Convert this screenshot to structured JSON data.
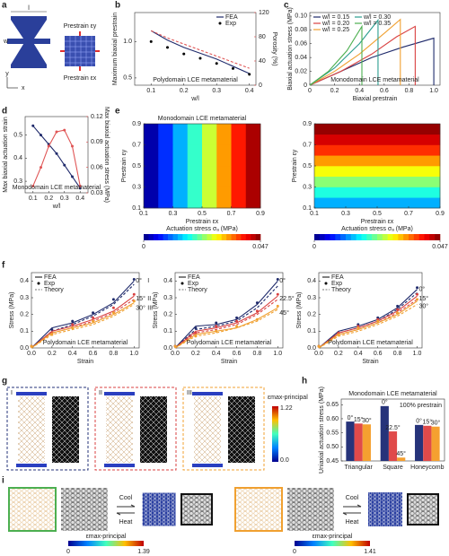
{
  "panel_labels": [
    "a",
    "b",
    "c",
    "d",
    "e",
    "f",
    "g",
    "h",
    "i"
  ],
  "diagrams": {
    "a": {
      "length": "l",
      "width": "w",
      "y_axis": "y",
      "x_axis": "x",
      "prestrain_y": "Prestrain εy",
      "prestrain_x": "Prestrain εx"
    },
    "g": {
      "cases": [
        "I",
        "II",
        "III"
      ],
      "colorbar": {
        "label": "εmax-principal",
        "top": "1.22",
        "bottom": "0.0"
      }
    },
    "i": {
      "left": {
        "cool": "Cool",
        "heat": "Heat",
        "colorbar": {
          "label": "εmax-principal",
          "min": "0",
          "max": "1.39"
        }
      },
      "right": {
        "cool": "Cool",
        "heat": "Heat",
        "colorbar": {
          "label": "εmax-principal",
          "min": "0",
          "max": "1.41"
        }
      }
    }
  },
  "chart_data": [
    {
      "type": "line",
      "x": [
        0.1,
        0.15,
        0.2,
        0.25,
        0.3,
        0.35,
        0.4
      ],
      "xlim": [
        0.05,
        0.42
      ],
      "xticks": [
        0.1,
        0.2,
        0.3,
        0.4
      ],
      "ylim": [
        0.4,
        1.4
      ],
      "yticks": [
        0.5,
        {
          "value": 1,
          "label": "1.0"
        }
      ],
      "y2lim": [
        0,
        120
      ],
      "y2ticks": [
        0,
        40,
        80,
        120
      ],
      "xlabel": "w/l",
      "ylabel": "Maximum biaxial prestrain",
      "y2label": "Porosity (%)",
      "annotation": "Polydomain LCE metamaterial",
      "legend": "upper right",
      "series": [
        {
          "name": "FEA",
          "color": "#1f2a6b",
          "style": "line",
          "values": [
            1.15,
            1.02,
            0.92,
            0.84,
            0.76,
            0.66,
            0.56
          ]
        },
        {
          "name": "Exp",
          "color": "#000000",
          "style": "points",
          "values": [
            1.0,
            0.92,
            0.83,
            0.77,
            0.7,
            0.63,
            0.55
          ]
        },
        {
          "color": "#e05555",
          "style": "dashed",
          "axis": "y2",
          "values": [
            90,
            78,
            68,
            58,
            48,
            38,
            28
          ]
        }
      ]
    },
    {
      "type": "line",
      "xlim": [
        0,
        1.05
      ],
      "xticks": [
        0,
        0.2,
        0.4,
        0.6,
        0.8,
        {
          "value": 1,
          "label": "1.0"
        }
      ],
      "ylim": [
        0,
        0.105
      ],
      "yticks": [
        0,
        0.02,
        0.04,
        0.06,
        0.08,
        {
          "value": 0.1,
          "label": "0.10"
        }
      ],
      "xlabel": "Biaxial prestrain",
      "ylabel": "Biaxial actuation stress (MPa)",
      "annotation": "Monodomain LCE metamaterial",
      "legend": "upper left",
      "series": [
        {
          "name": "w/l = 0.15",
          "color": "#1f2a6b",
          "style": "line",
          "x": [
            0,
            0.25,
            0.5,
            0.75,
            1.0,
            1.0
          ],
          "values": [
            0,
            0.02,
            0.04,
            0.055,
            0.068,
            0
          ]
        },
        {
          "name": "w/l = 0.20",
          "color": "#d94141",
          "style": "line",
          "x": [
            0,
            0.25,
            0.5,
            0.7,
            0.85,
            0.85
          ],
          "values": [
            0,
            0.02,
            0.045,
            0.07,
            0.085,
            0
          ]
        },
        {
          "name": "w/l = 0.25",
          "color": "#f0a030",
          "style": "line",
          "x": [
            0,
            0.2,
            0.4,
            0.6,
            0.73,
            0.73
          ],
          "values": [
            0,
            0.02,
            0.045,
            0.075,
            0.095,
            0
          ]
        },
        {
          "name": "w/l = 0.30",
          "color": "#2a9d8f",
          "style": "line",
          "x": [
            0,
            0.2,
            0.4,
            0.55,
            0.55
          ],
          "values": [
            0,
            0.025,
            0.06,
            0.094,
            0
          ]
        },
        {
          "name": "w/l = 0.35",
          "color": "#4caf50",
          "style": "line",
          "x": [
            0,
            0.15,
            0.3,
            0.42,
            0.42
          ],
          "values": [
            0,
            0.02,
            0.05,
            0.085,
            0
          ]
        }
      ]
    },
    {
      "type": "line",
      "x": [
        0.1,
        0.15,
        0.2,
        0.25,
        0.3,
        0.35,
        0.4
      ],
      "xlim": [
        0.05,
        0.45
      ],
      "xticks": [
        0.1,
        0.2,
        0.3,
        0.4
      ],
      "ylim": [
        0.25,
        0.58
      ],
      "yticks": [
        0.3,
        0.4,
        0.5
      ],
      "y2lim": [
        0.03,
        0.12
      ],
      "y2ticks": [
        0.03,
        0.06,
        0.09,
        0.12
      ],
      "xlabel": "w/l",
      "ylabel": "Max biaxial actuation strain",
      "y2label": "Max biaxial actuation stress (MPa)",
      "annotation": "Monodomain LCE metamaterial",
      "series": [
        {
          "color": "#1f2a6b",
          "style": "line-points",
          "values": [
            0.54,
            0.5,
            0.46,
            0.42,
            0.37,
            0.32,
            0.27
          ]
        },
        {
          "color": "#e05555",
          "style": "line-points",
          "axis": "y2",
          "values": [
            0.038,
            0.06,
            0.085,
            0.102,
            0.104,
            0.085,
            0.038
          ]
        }
      ]
    },
    {
      "type": "heatmap",
      "title": "Monodomain LCE metamaterial",
      "xlim": [
        0.1,
        0.9
      ],
      "ylim": [
        0.1,
        0.9
      ],
      "xticks": [
        0.1,
        0.3,
        0.5,
        0.7,
        0.9
      ],
      "yticks": [
        0.1,
        0.3,
        0.5,
        0.7,
        0.9
      ],
      "xlabel": "Prestrain εx",
      "ylabel": "Prestrain εy",
      "zlim": [
        0,
        0.047
      ],
      "z": [
        [
          0.002,
          0.008,
          0.014,
          0.02,
          0.027,
          0.034,
          0.04,
          0.045
        ],
        [
          0.002,
          0.008,
          0.014,
          0.02,
          0.027,
          0.034,
          0.04,
          0.045
        ],
        [
          0.002,
          0.008,
          0.014,
          0.02,
          0.027,
          0.034,
          0.04,
          0.045
        ],
        [
          0.002,
          0.008,
          0.014,
          0.02,
          0.027,
          0.034,
          0.04,
          0.045
        ]
      ],
      "colorbar": {
        "label": "Actuation stress σₐ (MPa)",
        "ticks": [
          0,
          0.047
        ]
      }
    },
    {
      "type": "heatmap",
      "xlim": [
        0.1,
        0.9
      ],
      "ylim": [
        0.1,
        0.9
      ],
      "xticks": [
        0.1,
        0.3,
        0.5,
        0.7,
        0.9
      ],
      "yticks": [
        0.1,
        0.3,
        0.5,
        0.7,
        0.9
      ],
      "xlabel": "Prestrain εx",
      "ylabel": "Prestrain εy",
      "zlim": [
        0,
        0.047
      ],
      "z": [
        [
          0.014,
          0.014,
          0.014,
          0.014
        ],
        [
          0.019,
          0.019,
          0.019,
          0.019
        ],
        [
          0.024,
          0.024,
          0.024,
          0.024
        ],
        [
          0.029,
          0.029,
          0.029,
          0.029
        ],
        [
          0.034,
          0.034,
          0.034,
          0.034
        ],
        [
          0.039,
          0.039,
          0.039,
          0.039
        ],
        [
          0.043,
          0.043,
          0.043,
          0.043
        ],
        [
          0.046,
          0.046,
          0.046,
          0.046
        ]
      ],
      "colorbar": {
        "label": "Actuation stress σₐ (MPa)",
        "ticks": [
          0,
          0.047
        ]
      }
    },
    {
      "type": "line",
      "x": [
        0,
        0.2,
        0.4,
        0.6,
        0.8,
        1.0
      ],
      "xlim": [
        0,
        1.05
      ],
      "xticks": [
        {
          "value": 0,
          "label": "0.0"
        },
        0.2,
        0.4,
        0.6,
        0.8,
        {
          "value": 1,
          "label": "1.0"
        }
      ],
      "ylim": [
        0,
        0.45
      ],
      "yticks": [
        {
          "value": 0,
          "label": "0.0"
        },
        0.1,
        0.2,
        0.3,
        0.4
      ],
      "xlabel": "Strain",
      "ylabel": "Stress (MPa)",
      "annotation": "Polydomain LCE metamaterial",
      "legend": "upper left",
      "legend_items": [
        {
          "name": "FEA",
          "style": "line"
        },
        {
          "name": "Exp",
          "style": "points"
        },
        {
          "name": "Theory",
          "style": "dashed"
        }
      ],
      "curves": [
        {
          "name": "0°",
          "tag": "I",
          "color": "#1f2a6b",
          "fea": [
            0,
            0.12,
            0.15,
            0.2,
            0.27,
            0.4
          ],
          "exp": [
            0.01,
            0.11,
            0.16,
            0.21,
            0.29,
            0.41
          ],
          "theory": [
            0,
            0.1,
            0.14,
            0.19,
            0.26,
            0.38
          ]
        },
        {
          "name": "15°",
          "tag": "II",
          "color": "#d94141",
          "fea": [
            0,
            0.1,
            0.13,
            0.17,
            0.22,
            0.31
          ],
          "exp": [
            0.01,
            0.09,
            0.14,
            0.18,
            0.24,
            0.32
          ],
          "theory": [
            0,
            0.09,
            0.12,
            0.16,
            0.21,
            0.29
          ]
        },
        {
          "name": "30°",
          "tag": "III",
          "color": "#f0a030",
          "fea": [
            0,
            0.09,
            0.12,
            0.15,
            0.2,
            0.27
          ],
          "exp": [
            0.01,
            0.08,
            0.12,
            0.16,
            0.21,
            0.28
          ],
          "theory": [
            0,
            0.08,
            0.11,
            0.14,
            0.19,
            0.26
          ]
        }
      ]
    },
    {
      "type": "line",
      "x": [
        0,
        0.2,
        0.4,
        0.6,
        0.8,
        1.0
      ],
      "xlim": [
        0,
        1.05
      ],
      "xticks": [
        {
          "value": 0,
          "label": "0.0"
        },
        0.2,
        0.4,
        0.6,
        0.8,
        {
          "value": 1,
          "label": "1.0"
        }
      ],
      "ylim": [
        0,
        0.45
      ],
      "yticks": [
        {
          "value": 0,
          "label": "0.0"
        },
        0.1,
        0.2,
        0.3,
        0.4
      ],
      "xlabel": "Strain",
      "ylabel": "Stress (MPa)",
      "annotation": "Polydomain LCE metamaterial",
      "legend": "upper left",
      "legend_items": [
        {
          "name": "FEA",
          "style": "line"
        },
        {
          "name": "Exp",
          "style": "points"
        },
        {
          "name": "Theory",
          "style": "dashed"
        }
      ],
      "curves": [
        {
          "name": "0°",
          "color": "#1f2a6b",
          "fea": [
            0,
            0.13,
            0.14,
            0.17,
            0.26,
            0.4
          ],
          "exp": [
            0.01,
            0.12,
            0.15,
            0.18,
            0.27,
            0.41
          ],
          "theory": [
            0,
            0.11,
            0.13,
            0.16,
            0.24,
            0.37
          ]
        },
        {
          "name": "22.5°",
          "color": "#d94141",
          "fea": [
            0,
            0.1,
            0.12,
            0.15,
            0.21,
            0.31
          ],
          "exp": [
            0.01,
            0.09,
            0.13,
            0.16,
            0.22,
            0.32
          ],
          "theory": [
            0,
            0.09,
            0.11,
            0.14,
            0.2,
            0.29
          ]
        },
        {
          "name": "45°",
          "color": "#f0a030",
          "fea": [
            0,
            0.08,
            0.1,
            0.12,
            0.17,
            0.24
          ],
          "exp": [
            0.01,
            0.07,
            0.1,
            0.13,
            0.17,
            0.25
          ],
          "theory": [
            0,
            0.07,
            0.09,
            0.12,
            0.16,
            0.23
          ]
        }
      ]
    },
    {
      "type": "line",
      "x": [
        0,
        0.2,
        0.4,
        0.6,
        0.8,
        1.0
      ],
      "xlim": [
        0,
        1.05
      ],
      "xticks": [
        {
          "value": 0,
          "label": "0.0"
        },
        0.2,
        0.4,
        0.6,
        0.8,
        {
          "value": 1,
          "label": "1.0"
        }
      ],
      "ylim": [
        0,
        0.45
      ],
      "yticks": [
        {
          "value": 0,
          "label": "0.0"
        },
        0.1,
        0.2,
        0.3,
        0.4
      ],
      "xlabel": "Strain",
      "ylabel": "Stress (MPa)",
      "annotation": "Polydomain LCE metamaterial",
      "legend": "upper left",
      "legend_items": [
        {
          "name": "FEA",
          "style": "line"
        },
        {
          "name": "Exp",
          "style": "points"
        },
        {
          "name": "Theory",
          "style": "dashed"
        }
      ],
      "curves": [
        {
          "name": "0°",
          "color": "#1f2a6b",
          "fea": [
            0,
            0.1,
            0.13,
            0.17,
            0.24,
            0.35
          ],
          "exp": [
            0.01,
            0.09,
            0.14,
            0.18,
            0.25,
            0.36
          ],
          "theory": [
            0,
            0.09,
            0.12,
            0.16,
            0.23,
            0.33
          ]
        },
        {
          "name": "15°",
          "color": "#d94141",
          "fea": [
            0,
            0.09,
            0.12,
            0.16,
            0.22,
            0.31
          ],
          "exp": [
            0.01,
            0.09,
            0.13,
            0.17,
            0.23,
            0.32
          ],
          "theory": [
            0,
            0.08,
            0.11,
            0.15,
            0.21,
            0.29
          ]
        },
        {
          "name": "30°",
          "color": "#f0a030",
          "fea": [
            0,
            0.08,
            0.11,
            0.15,
            0.2,
            0.28
          ],
          "exp": [
            0.01,
            0.08,
            0.12,
            0.16,
            0.21,
            0.29
          ],
          "theory": [
            0,
            0.07,
            0.1,
            0.14,
            0.19,
            0.26
          ]
        }
      ]
    },
    {
      "type": "bar",
      "title": "Monodomain LCE metamaterial",
      "annotation": "100% prestrain",
      "ylabel": "Uniaxial actuation stress (MPa)",
      "categories": [
        "Triangular",
        "Square",
        "Honeycomb"
      ],
      "ylim": [
        0.45,
        0.67
      ],
      "yticks": [
        0.45,
        {
          "value": 0.5,
          "label": "0.50"
        },
        0.55,
        {
          "value": 0.6,
          "label": "0.60"
        },
        0.65
      ],
      "series": [
        {
          "color": "#26337a",
          "values": [
            0.59,
            0.645,
            0.578
          ]
        },
        {
          "color": "#e04a4a",
          "values": [
            0.583,
            0.555,
            0.575
          ]
        },
        {
          "color": "#f5a030",
          "values": [
            0.58,
            0.462,
            0.572
          ]
        }
      ],
      "bar_labels": [
        [
          "0°",
          "15°",
          "30°"
        ],
        [
          "0°",
          "22.5°",
          "45°"
        ],
        [
          "0°",
          "15°",
          "30°"
        ]
      ]
    }
  ]
}
